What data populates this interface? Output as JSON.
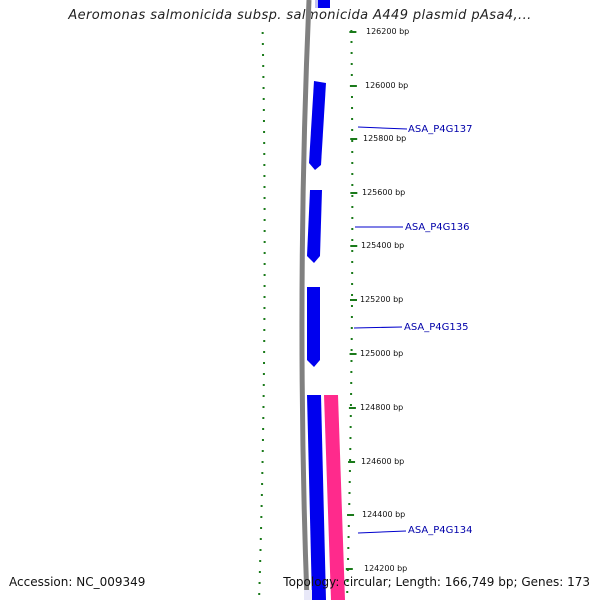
{
  "title": "Aeromonas salmonicida subsp. salmonicida A449 plasmid pAsa4,...",
  "footer": {
    "accession": "Accession: NC_009349",
    "summary": "Topology: circular; Length: 166,749 bp; Genes: 173"
  },
  "ticks": [
    {
      "label": "126200 bp",
      "bp": 126200
    },
    {
      "label": "126000 bp",
      "bp": 126000
    },
    {
      "label": "125800 bp",
      "bp": 125800
    },
    {
      "label": "125600 bp",
      "bp": 125600
    },
    {
      "label": "125400 bp",
      "bp": 125400
    },
    {
      "label": "125200 bp",
      "bp": 125200
    },
    {
      "label": "125000 bp",
      "bp": 125000
    },
    {
      "label": "124800 bp",
      "bp": 124800
    },
    {
      "label": "124600 bp",
      "bp": 124600
    },
    {
      "label": "124400 bp",
      "bp": 124400
    },
    {
      "label": "124200 bp",
      "bp": 124200
    }
  ],
  "genes": [
    {
      "label": "ASA_P4G137"
    },
    {
      "label": "ASA_P4G136"
    },
    {
      "label": "ASA_P4G135"
    },
    {
      "label": "ASA_P4G134"
    }
  ],
  "colors": {
    "backbone": "#808080",
    "gene_reverse": "#0000ee",
    "feature_other": "#ff2a8c",
    "tick_marks": "#1a7a1a",
    "label_line": "#0000cc"
  }
}
